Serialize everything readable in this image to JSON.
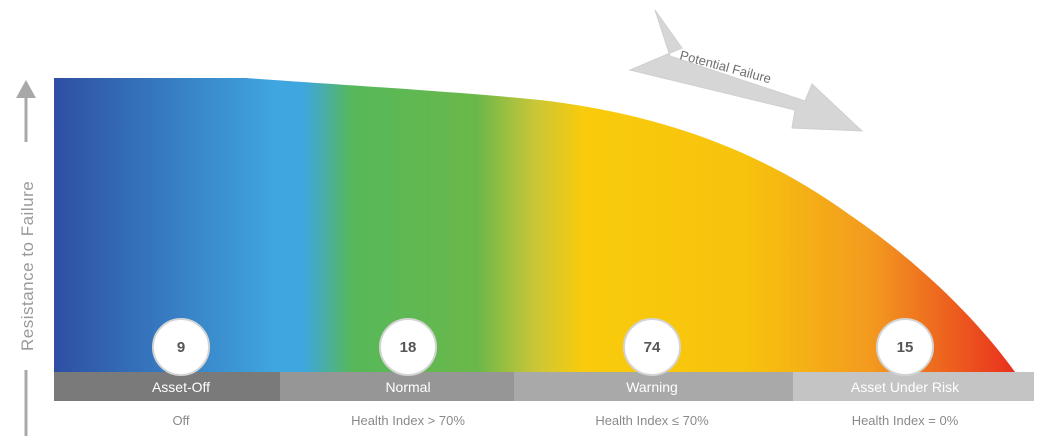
{
  "y_axis_label": "Resistance to Failure",
  "arrow_label": "Potential Failure",
  "stages": [
    {
      "name": "Asset-Off",
      "count": "9",
      "condition": "Off",
      "color": "#7a7a7a"
    },
    {
      "name": "Normal",
      "count": "18",
      "condition": "Health Index > 70%",
      "color": "#969696"
    },
    {
      "name": "Warning",
      "count": "74",
      "condition": "Health Index ≤ 70%",
      "color": "#a9a9a9"
    },
    {
      "name": "Asset Under Risk",
      "count": "15",
      "condition": "Health Index = 0%",
      "color": "#c4c4c4"
    }
  ],
  "colors": {
    "blue_dark": "#2e4fa3",
    "blue_light": "#3fa6df",
    "green": "#5ab84c",
    "yellow": "#f7c80e",
    "orange": "#f39a1f",
    "red": "#e8321f",
    "arrow_gray": "#d6d6d6",
    "axis_gray": "#a8a8a8"
  }
}
